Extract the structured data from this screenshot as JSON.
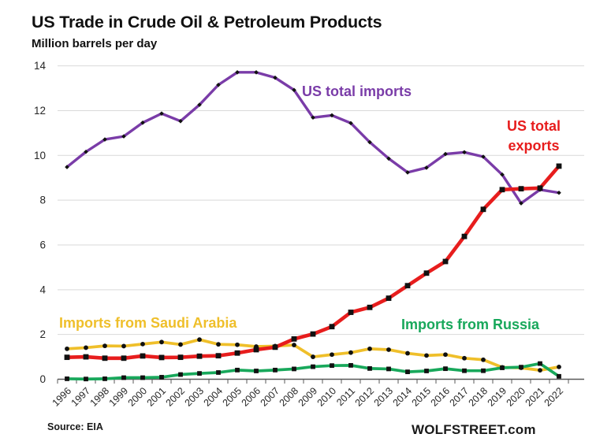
{
  "chart_data": {
    "type": "line",
    "title": "US Trade in Crude Oil & Petroleum Products",
    "subtitle": "Million barrels per day",
    "xlabel": "",
    "ylabel": "Million barrels per day",
    "ylim": [
      0,
      14
    ],
    "y_ticks": [
      0,
      2,
      4,
      6,
      8,
      10,
      12,
      14
    ],
    "grid": "horizontal",
    "legend_position": "inline-annotations",
    "categories": [
      "1996",
      "1997",
      "1998",
      "1999",
      "2000",
      "2001",
      "2002",
      "2003",
      "2004",
      "2005",
      "2006",
      "2007",
      "2008",
      "2009",
      "2010",
      "2011",
      "2012",
      "2013",
      "2014",
      "2015",
      "2016",
      "2017",
      "2018",
      "2019",
      "2020",
      "2021",
      "2022"
    ],
    "series": [
      {
        "name": "US total imports",
        "color": "#7A3CA8",
        "marker": "diamond",
        "marker_color": "#111111",
        "values": [
          9.48,
          10.16,
          10.71,
          10.85,
          11.46,
          11.87,
          11.53,
          12.26,
          13.15,
          13.71,
          13.71,
          13.47,
          12.92,
          11.69,
          11.79,
          11.44,
          10.59,
          9.86,
          9.24,
          9.45,
          10.06,
          10.14,
          9.94,
          9.14,
          7.86,
          8.47,
          8.33
        ]
      },
      {
        "name": "US total exports",
        "color": "#E71D1D",
        "marker": "square",
        "marker_color": "#111111",
        "values": [
          0.98,
          1.0,
          0.94,
          0.94,
          1.04,
          0.97,
          0.98,
          1.03,
          1.05,
          1.17,
          1.32,
          1.43,
          1.8,
          2.02,
          2.35,
          2.99,
          3.21,
          3.62,
          4.18,
          4.74,
          5.26,
          6.38,
          7.59,
          8.47,
          8.51,
          8.54,
          9.52
        ]
      },
      {
        "name": "Imports from Saudi Arabia",
        "color": "#EFBF2A",
        "marker": "circle",
        "marker_color": "#111111",
        "values": [
          1.36,
          1.41,
          1.49,
          1.48,
          1.57,
          1.66,
          1.55,
          1.77,
          1.56,
          1.54,
          1.46,
          1.48,
          1.53,
          1.0,
          1.1,
          1.19,
          1.36,
          1.32,
          1.16,
          1.06,
          1.1,
          0.94,
          0.87,
          0.53,
          0.51,
          0.4,
          0.55
        ]
      },
      {
        "name": "Imports from Russia",
        "color": "#18A85B",
        "marker": "square",
        "marker_color": "#111111",
        "values": [
          0.02,
          0.01,
          0.02,
          0.07,
          0.07,
          0.09,
          0.21,
          0.26,
          0.3,
          0.41,
          0.37,
          0.41,
          0.46,
          0.56,
          0.61,
          0.62,
          0.48,
          0.46,
          0.33,
          0.37,
          0.47,
          0.38,
          0.38,
          0.51,
          0.54,
          0.7,
          0.13
        ]
      }
    ]
  },
  "footer": {
    "source": "Source: EIA",
    "brand": "WOLFSTREET.com"
  }
}
